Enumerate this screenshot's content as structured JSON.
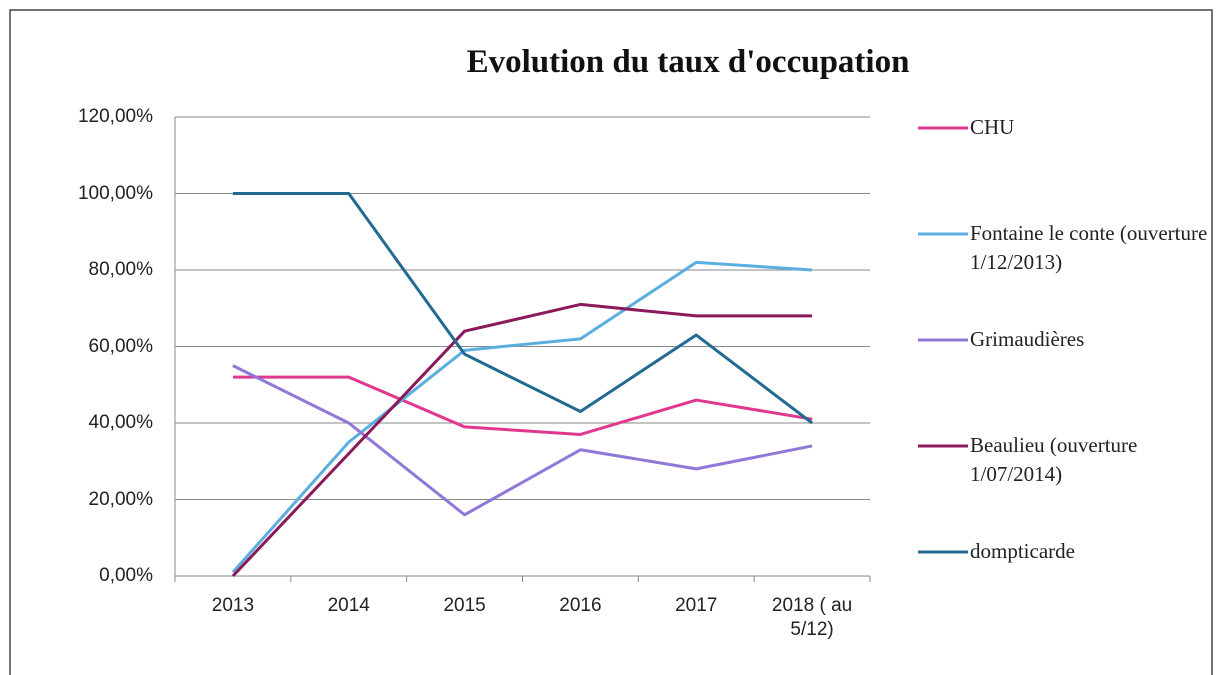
{
  "chart_data": {
    "type": "line",
    "title": "Evolution du taux d'occupation",
    "categories": [
      "2013",
      "2014",
      "2015",
      "2016",
      "2017",
      "2018 ( au 5/12)"
    ],
    "series": [
      {
        "name": "CHU",
        "color": "#e0388f",
        "values": [
          52,
          52,
          39,
          37,
          46,
          41
        ]
      },
      {
        "name": "Fontaine le conte (ouverture 1/12/2013)",
        "color": "#5aaee0",
        "values": [
          1,
          35,
          59,
          62,
          82,
          80
        ]
      },
      {
        "name": "Grimaudières",
        "color": "#8f78d8",
        "values": [
          55,
          40,
          16,
          33,
          28,
          34
        ]
      },
      {
        "name": "Beaulieu (ouverture 1/07/2014)",
        "color": "#8b1a5a",
        "values": [
          0,
          32,
          64,
          71,
          68,
          68
        ]
      },
      {
        "name": "dompticarde",
        "color": "#236a93",
        "values": [
          100,
          100,
          58,
          43,
          63,
          40
        ]
      }
    ],
    "ylim": [
      0,
      120
    ],
    "yticks": [
      {
        "value": 0,
        "label": "0,00%"
      },
      {
        "value": 20,
        "label": "20,00%"
      },
      {
        "value": 40,
        "label": "40,00%"
      },
      {
        "value": 60,
        "label": "60,00%"
      },
      {
        "value": 80,
        "label": "80,00%"
      },
      {
        "value": 100,
        "label": "100,00%"
      },
      {
        "value": 120,
        "label": "120,00%"
      }
    ],
    "grid": true,
    "legend": "right"
  }
}
